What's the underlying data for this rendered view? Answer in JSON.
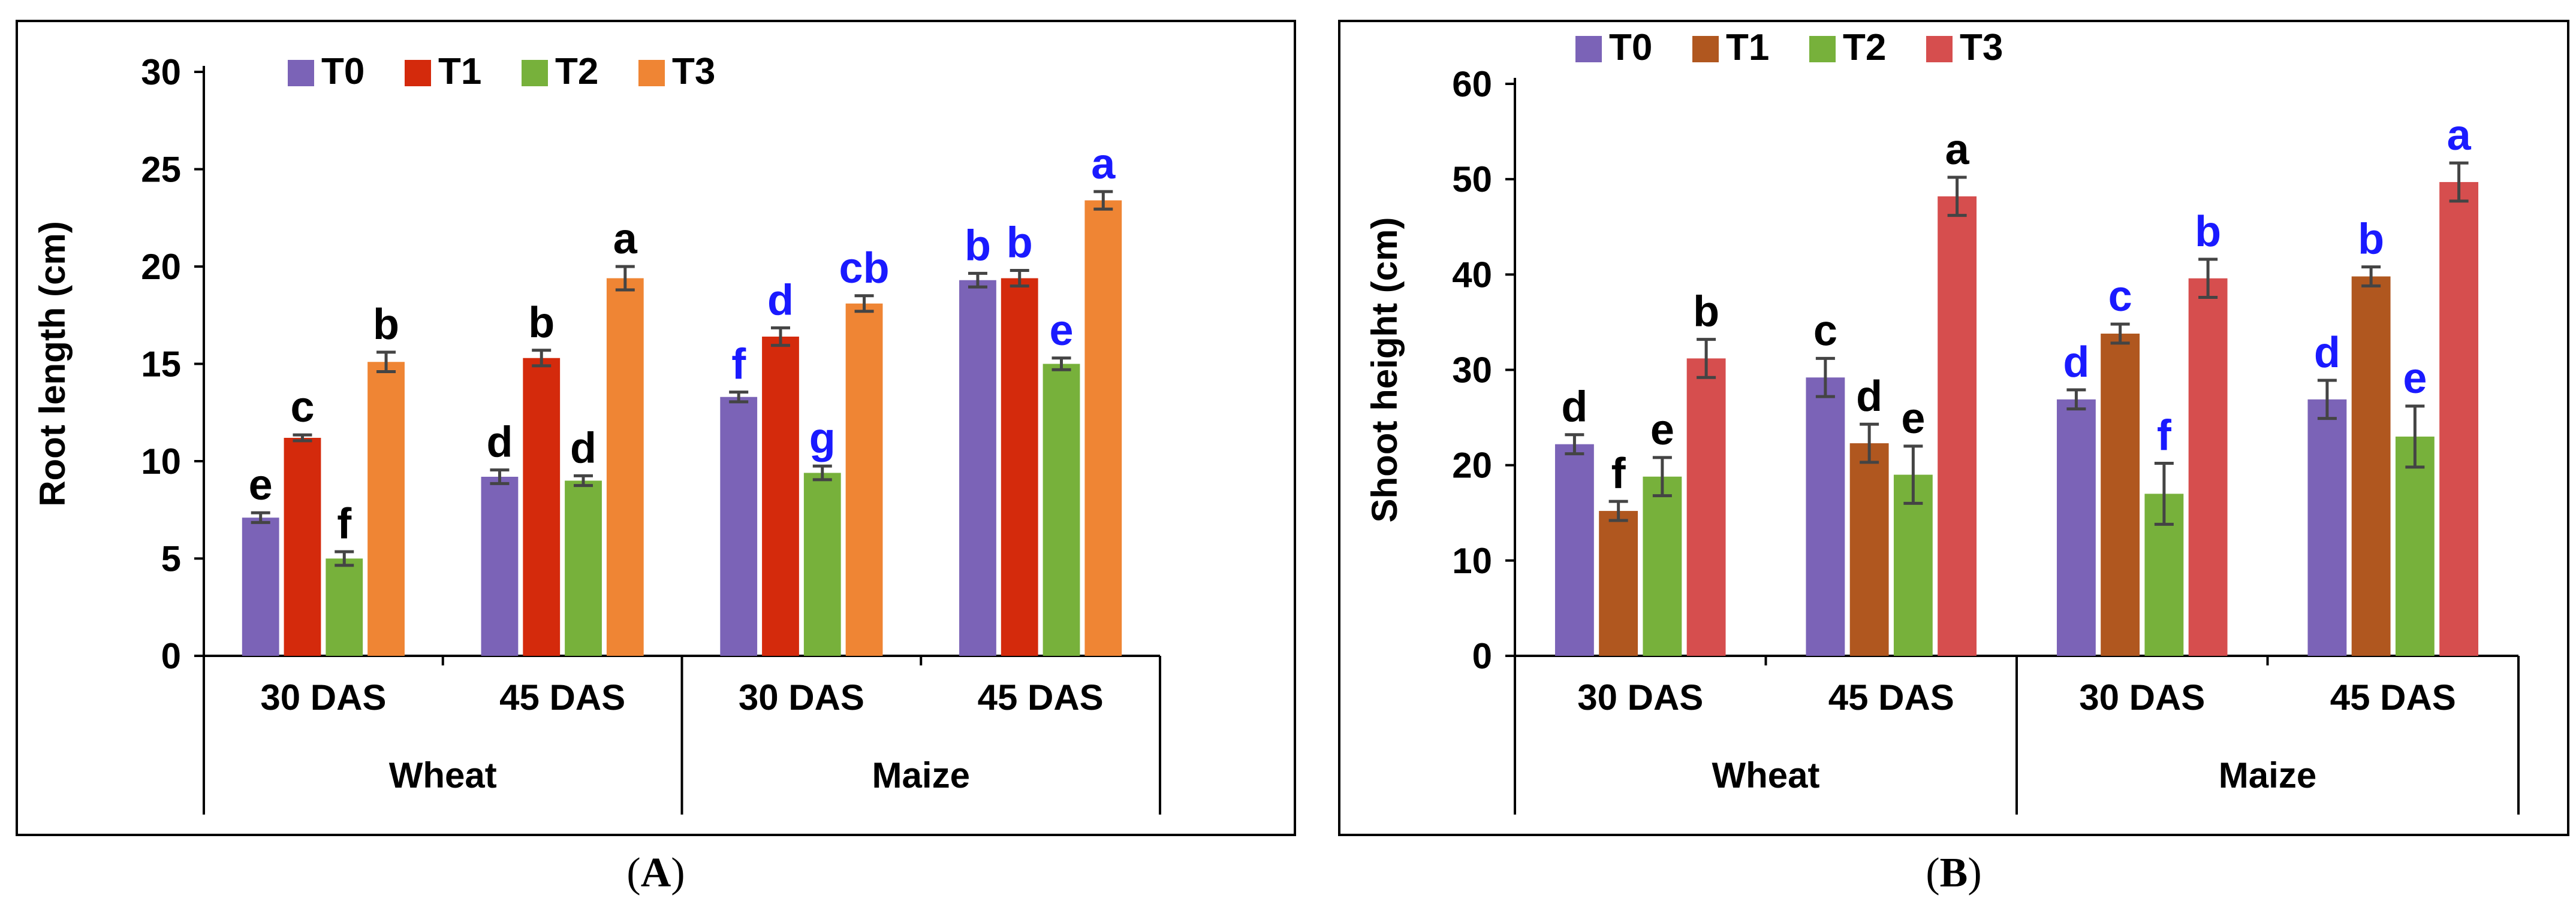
{
  "chart_data": [
    {
      "type": "bar",
      "panel_label": "A",
      "ylabel": "Root length (cm)",
      "ylim": [
        0,
        30
      ],
      "yticks": [
        0,
        5,
        10,
        15,
        20,
        25,
        30
      ],
      "categories": [
        "30 DAS",
        "45 DAS",
        "30 DAS",
        "45 DAS"
      ],
      "groups": [
        {
          "label": "Wheat",
          "span": [
            0,
            1
          ]
        },
        {
          "label": "Maize",
          "span": [
            2,
            3
          ]
        }
      ],
      "legend_position": "top",
      "series": [
        {
          "name": "T0",
          "color": "#7b63b7",
          "values": [
            7.1,
            9.2,
            13.3,
            19.3
          ],
          "errors": [
            0.25,
            0.35,
            0.25,
            0.35
          ],
          "letters": [
            "e",
            "d",
            "f",
            "b"
          ]
        },
        {
          "name": "T1",
          "color": "#d42a0c",
          "values": [
            11.2,
            15.3,
            16.4,
            19.4
          ],
          "errors": [
            0.15,
            0.4,
            0.45,
            0.4
          ],
          "letters": [
            "c",
            "b",
            "d",
            "b"
          ]
        },
        {
          "name": "T2",
          "color": "#77b13b",
          "values": [
            5.0,
            9.0,
            9.4,
            15.0
          ],
          "errors": [
            0.35,
            0.25,
            0.35,
            0.3
          ],
          "letters": [
            "f",
            "d",
            "g",
            "e"
          ]
        },
        {
          "name": "T3",
          "color": "#ef8534",
          "values": [
            15.1,
            19.4,
            18.1,
            23.4
          ],
          "errors": [
            0.5,
            0.6,
            0.4,
            0.45
          ],
          "letters": [
            "b",
            "a",
            "cb",
            "a"
          ]
        }
      ],
      "letter_colors": [
        "#000000",
        "#000000",
        "#1a1aff",
        "#1a1aff"
      ]
    },
    {
      "type": "bar",
      "panel_label": "B",
      "ylabel": "Shoot height (cm)",
      "ylim": [
        0,
        60
      ],
      "yticks": [
        0,
        10,
        20,
        30,
        40,
        50,
        60
      ],
      "categories": [
        "30 DAS",
        "45 DAS",
        "30 DAS",
        "45 DAS"
      ],
      "groups": [
        {
          "label": "Wheat",
          "span": [
            0,
            1
          ]
        },
        {
          "label": "Maize",
          "span": [
            2,
            3
          ]
        }
      ],
      "legend_position": "top",
      "series": [
        {
          "name": "T0",
          "color": "#7b63b7",
          "values": [
            22.2,
            29.2,
            26.9,
            26.9
          ],
          "errors": [
            1.0,
            2.0,
            1.0,
            2.0
          ],
          "letters": [
            "d",
            "c",
            "d",
            "d"
          ]
        },
        {
          "name": "T1",
          "color": "#b0571f",
          "values": [
            15.2,
            22.3,
            33.8,
            39.8
          ],
          "errors": [
            1.0,
            2.0,
            1.0,
            1.0
          ],
          "letters": [
            "f",
            "d",
            "c",
            "b"
          ]
        },
        {
          "name": "T2",
          "color": "#77b13b",
          "values": [
            18.8,
            19.0,
            17.0,
            23.0
          ],
          "errors": [
            2.0,
            3.0,
            3.2,
            3.2
          ],
          "letters": [
            "e",
            "e",
            "f",
            "e"
          ]
        },
        {
          "name": "T3",
          "color": "#d64e4e",
          "values": [
            31.2,
            48.2,
            39.6,
            49.7
          ],
          "errors": [
            2.0,
            2.0,
            2.0,
            2.0
          ],
          "letters": [
            "b",
            "a",
            "b",
            "a"
          ]
        }
      ],
      "letter_colors": [
        "#000000",
        "#000000",
        "#1a1aff",
        "#1a1aff"
      ]
    }
  ]
}
